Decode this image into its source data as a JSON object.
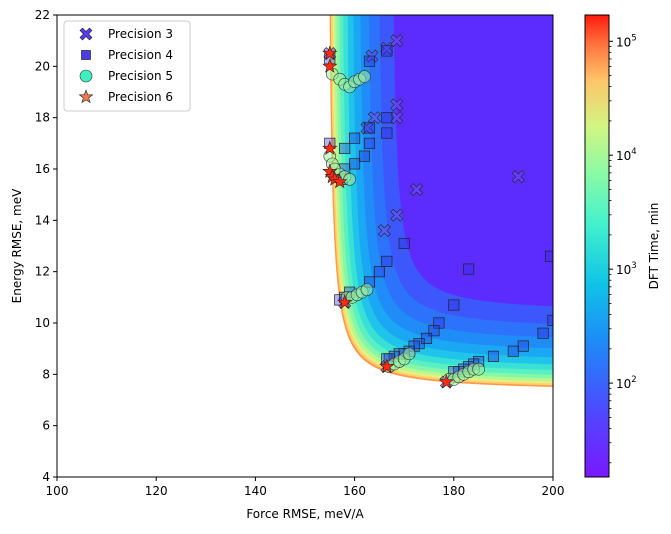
{
  "chart_data": {
    "type": "scatter",
    "xlabel": "Force RMSE, meV/A",
    "ylabel": "Energy RMSE, meV",
    "xlim": [
      100,
      200
    ],
    "ylim": [
      4,
      22
    ],
    "x_ticks": [
      100,
      120,
      140,
      160,
      180,
      200
    ],
    "y_ticks": [
      4,
      6,
      8,
      10,
      12,
      14,
      16,
      18,
      20,
      22
    ],
    "x_tick_labels": [
      "100",
      "120",
      "140",
      "160",
      "180",
      "200"
    ],
    "y_tick_labels": [
      "4",
      "6",
      "8",
      "10",
      "12",
      "14",
      "16",
      "18",
      "20",
      "22"
    ],
    "legend_position": "top-left",
    "colorbar": {
      "label": "DFT Time, min",
      "scale": "log",
      "range": [
        15,
        170000
      ],
      "ticks": [
        100,
        1000,
        10000,
        100000
      ],
      "tick_labels": [
        {
          "base": "10",
          "exp": "2"
        },
        {
          "base": "10",
          "exp": "3"
        },
        {
          "base": "10",
          "exp": "4"
        },
        {
          "base": "10",
          "exp": "5"
        }
      ]
    },
    "series": [
      {
        "name": "Precision 3",
        "marker": "X",
        "color": "#5a3cf0",
        "points": [
          [
            155.0,
            20.5
          ],
          [
            163.5,
            20.4
          ],
          [
            166.5,
            20.7
          ],
          [
            168.5,
            21.0
          ],
          [
            168.5,
            18.5
          ],
          [
            168.5,
            18.0
          ],
          [
            164.0,
            18.0
          ],
          [
            162.5,
            17.6
          ],
          [
            172.5,
            15.2
          ],
          [
            193.0,
            15.7
          ],
          [
            166.0,
            13.6
          ],
          [
            168.5,
            14.2
          ],
          [
            158.0,
            10.8
          ],
          [
            166.5,
            8.3
          ],
          [
            178.5,
            7.7
          ]
        ]
      },
      {
        "name": "Precision 4",
        "marker": "square",
        "color": "#4a3ce6",
        "points": [
          [
            155.0,
            20.3
          ],
          [
            163.0,
            20.2
          ],
          [
            166.5,
            20.6
          ],
          [
            166.5,
            18.0
          ],
          [
            166.5,
            17.4
          ],
          [
            163.0,
            17.6
          ],
          [
            163.0,
            17.0
          ],
          [
            160.0,
            17.2
          ],
          [
            158.0,
            16.8
          ],
          [
            162.0,
            16.5
          ],
          [
            155.0,
            17.0
          ],
          [
            160.0,
            16.2
          ],
          [
            158.0,
            16.0
          ],
          [
            157.5,
            15.6
          ],
          [
            170.0,
            13.1
          ],
          [
            166.5,
            12.4
          ],
          [
            165.0,
            12.0
          ],
          [
            163.0,
            11.6
          ],
          [
            183.0,
            12.1
          ],
          [
            199.5,
            12.6
          ],
          [
            159.0,
            11.2
          ],
          [
            158.0,
            11.0
          ],
          [
            157.0,
            10.9
          ],
          [
            180.0,
            10.7
          ],
          [
            177.0,
            10.0
          ],
          [
            176.0,
            9.7
          ],
          [
            174.5,
            9.4
          ],
          [
            173.0,
            9.2
          ],
          [
            172.0,
            9.1
          ],
          [
            171.0,
            8.9
          ],
          [
            170.0,
            8.8
          ],
          [
            169.0,
            8.8
          ],
          [
            168.0,
            8.7
          ],
          [
            167.0,
            8.6
          ],
          [
            166.5,
            8.6
          ],
          [
            188.0,
            8.7
          ],
          [
            185.0,
            8.5
          ],
          [
            184.0,
            8.4
          ],
          [
            183.0,
            8.3
          ],
          [
            182.0,
            8.2
          ],
          [
            181.0,
            8.1
          ],
          [
            180.0,
            8.1
          ],
          [
            192.0,
            8.9
          ],
          [
            194.0,
            9.1
          ],
          [
            198.0,
            9.6
          ],
          [
            200.0,
            10.1
          ]
        ]
      },
      {
        "name": "Precision 5",
        "marker": "circle",
        "color": "#3ef0c0",
        "points": [
          [
            155.5,
            19.7
          ],
          [
            157.0,
            19.5
          ],
          [
            158.0,
            19.3
          ],
          [
            159.0,
            19.2
          ],
          [
            160.0,
            19.4
          ],
          [
            161.0,
            19.5
          ],
          [
            162.0,
            19.6
          ],
          [
            155.0,
            16.5
          ],
          [
            155.5,
            16.2
          ],
          [
            156.0,
            16.0
          ],
          [
            157.0,
            15.8
          ],
          [
            158.0,
            15.7
          ],
          [
            159.0,
            15.6
          ],
          [
            158.5,
            11.0
          ],
          [
            159.5,
            11.0
          ],
          [
            160.5,
            11.1
          ],
          [
            161.5,
            11.2
          ],
          [
            162.5,
            11.3
          ],
          [
            167.0,
            8.3
          ],
          [
            168.0,
            8.4
          ],
          [
            169.0,
            8.5
          ],
          [
            170.0,
            8.6
          ],
          [
            171.0,
            8.8
          ],
          [
            179.0,
            7.8
          ],
          [
            180.0,
            7.8
          ],
          [
            181.0,
            7.9
          ],
          [
            182.0,
            8.0
          ],
          [
            183.0,
            8.1
          ],
          [
            184.0,
            8.2
          ],
          [
            185.0,
            8.2
          ]
        ]
      },
      {
        "name": "Precision 6",
        "marker": "star",
        "color": "#f07850",
        "points": [
          [
            155.0,
            20.5
          ],
          [
            155.0,
            20.0
          ],
          [
            155.0,
            16.8
          ],
          [
            155.0,
            15.9
          ],
          [
            155.5,
            15.7
          ],
          [
            156.0,
            15.6
          ],
          [
            157.0,
            15.5
          ],
          [
            158.0,
            10.8
          ],
          [
            166.5,
            8.3
          ],
          [
            178.5,
            7.7
          ]
        ]
      }
    ]
  }
}
